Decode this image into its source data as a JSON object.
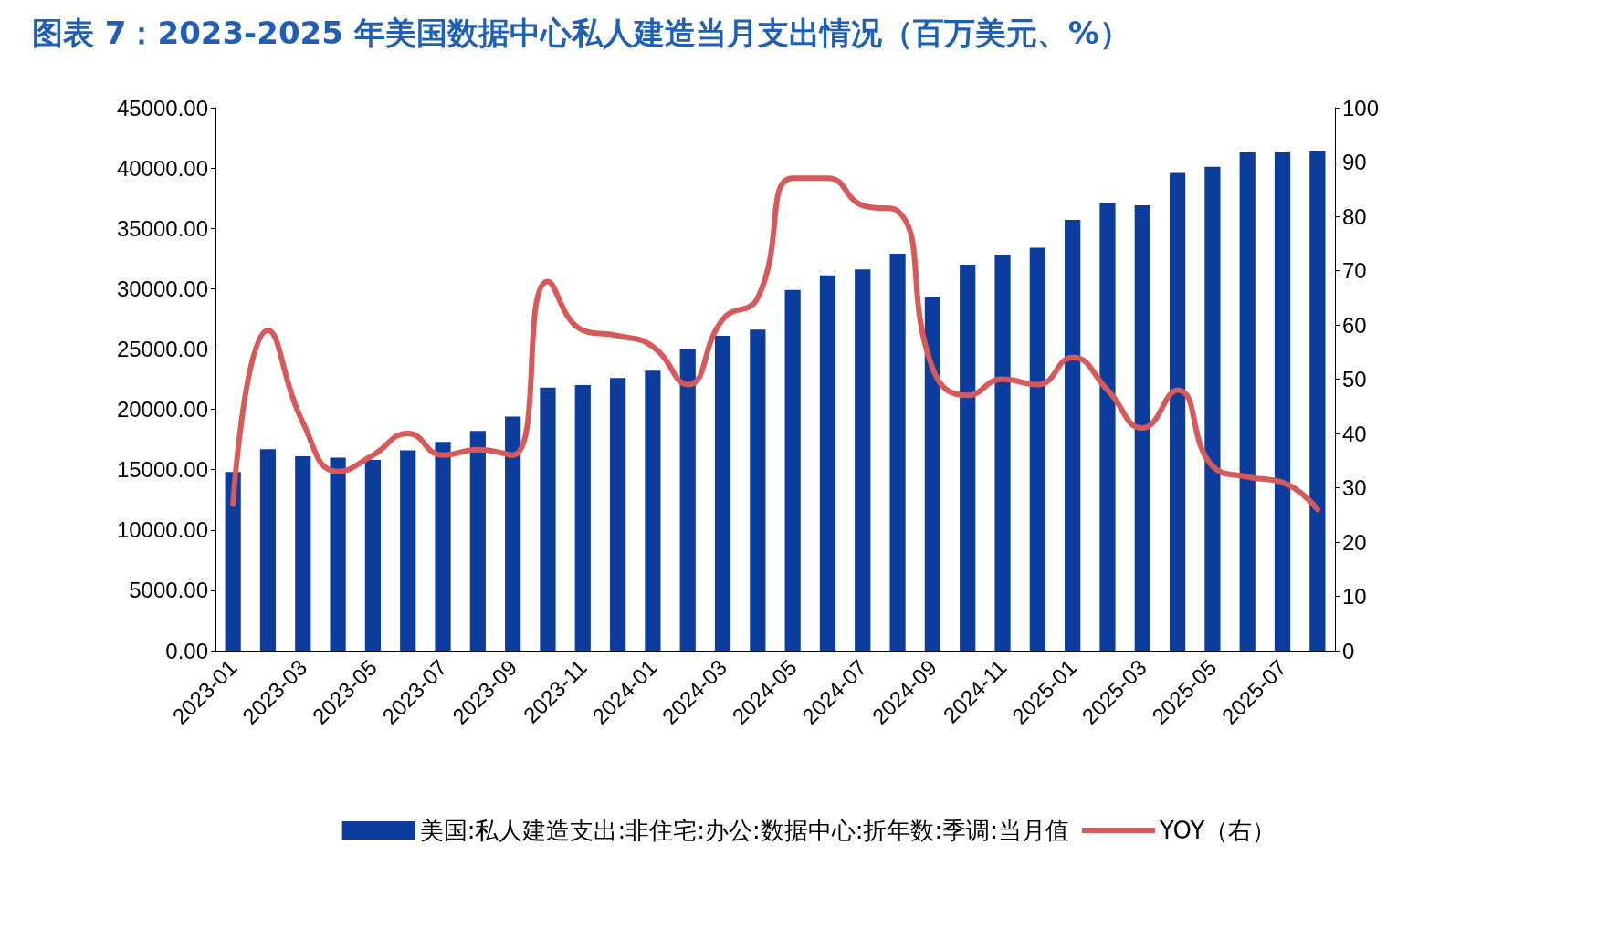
{
  "chart_data": {
    "type": "bar",
    "title": "图表 7：2023-2025 年美国数据中心私人建造当月支出情况（百万美元、%）",
    "categories": [
      "2023-01",
      null,
      "2023-03",
      null,
      "2023-05",
      null,
      "2023-07",
      null,
      "2023-09",
      null,
      "2023-11",
      null,
      "2024-01",
      null,
      "2024-03",
      null,
      "2024-05",
      null,
      "2024-07",
      null,
      "2024-09",
      null,
      "2024-11",
      null,
      "2025-01",
      null,
      "2025-03",
      null,
      "2025-05",
      null,
      "2025-07",
      null
    ],
    "series": [
      {
        "name": "美国:私人建造支出:非住宅:办公:数据中心:折年数:季调:当月值",
        "color": "#0d3d9c",
        "values": [
          14800,
          16700,
          16100,
          16000,
          15800,
          16600,
          17300,
          18200,
          19400,
          21800,
          22000,
          22600,
          23200,
          25000,
          26100,
          26600,
          29900,
          31100,
          31600,
          32900,
          29300,
          32000,
          32800,
          33400,
          35700,
          37100,
          36900,
          39600,
          40100,
          41300,
          41300,
          41400
        ]
      },
      {
        "name": "YOY（右）",
        "type": "line",
        "axis": "y2",
        "color": "#d65a5a",
        "values": [
          27,
          59,
          42,
          33,
          36,
          40,
          36,
          37,
          36,
          68,
          59,
          58,
          56,
          49,
          61,
          65,
          87,
          87,
          82,
          81,
          52,
          47,
          50,
          49,
          54,
          48,
          41,
          48,
          34,
          32,
          31,
          26
        ]
      }
    ],
    "ylim": [
      0,
      45000
    ],
    "yticks": [
      {
        "value": 0,
        "label": "0.00"
      },
      {
        "value": 5000,
        "label": "5000.00"
      },
      {
        "value": 10000,
        "label": "10000.00"
      },
      {
        "value": 15000,
        "label": "15000.00"
      },
      {
        "value": 20000,
        "label": "20000.00"
      },
      {
        "value": 25000,
        "label": "25000.00"
      },
      {
        "value": 30000,
        "label": "30000.00"
      },
      {
        "value": 35000,
        "label": "35000.00"
      },
      {
        "value": 40000,
        "label": "40000.00"
      },
      {
        "value": 45000,
        "label": "45000.00"
      }
    ],
    "y2lim": [
      0,
      100
    ],
    "y2ticks": [
      0,
      10,
      20,
      30,
      40,
      50,
      60,
      70,
      80,
      90,
      100
    ],
    "grid": false,
    "legend": "bottom",
    "marker": "none",
    "line_style": "solid"
  }
}
